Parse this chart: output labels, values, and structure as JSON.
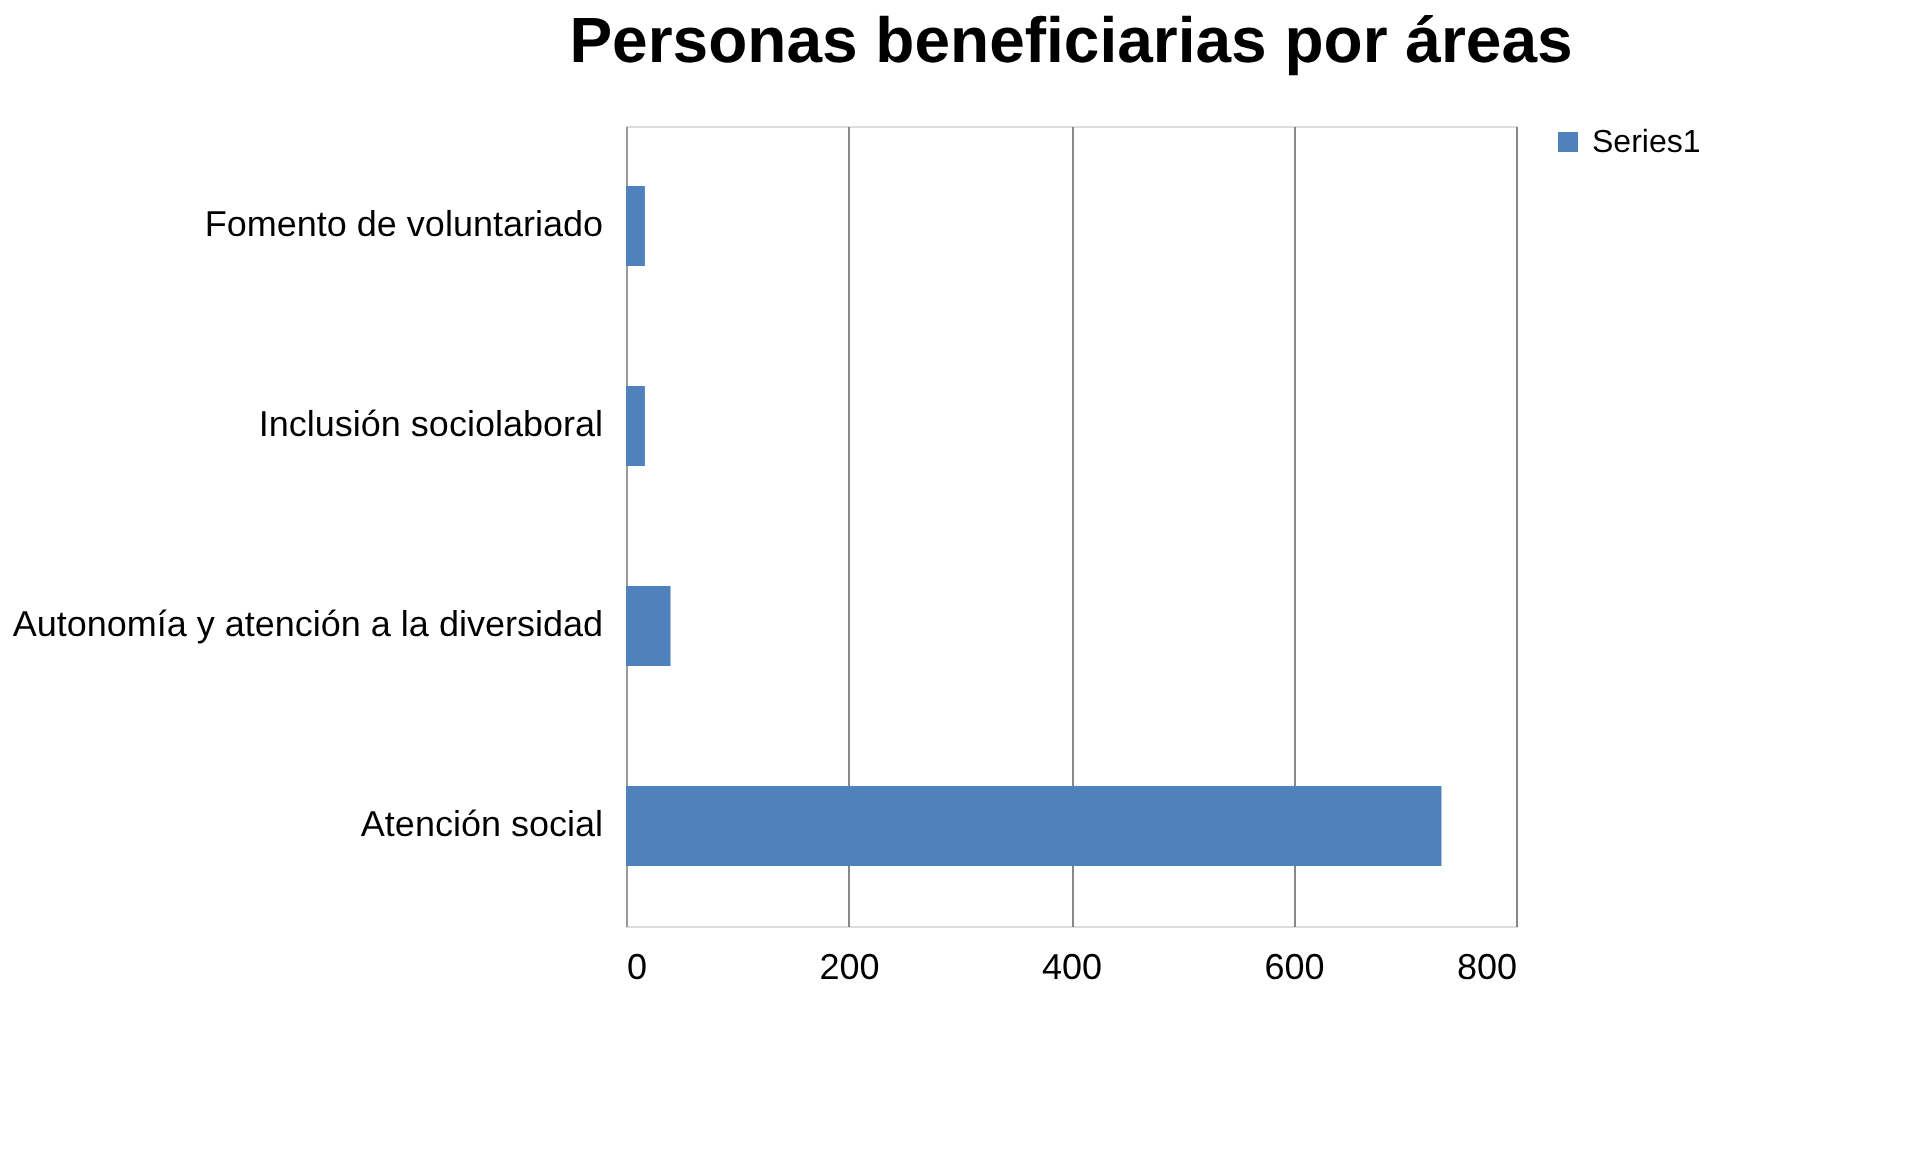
{
  "chart_data": {
    "type": "bar",
    "orientation": "horizontal",
    "title": "Personas beneficiarias por áreas",
    "categories": [
      "Fomento de voluntariado",
      "Inclusión sociolaboral",
      "Autonomía y atención a la diversidad",
      "Atención social"
    ],
    "series": [
      {
        "name": "Series1",
        "color": "#4f81bd",
        "values": [
          17,
          17,
          40,
          733
        ]
      }
    ],
    "xlim": [
      0,
      800
    ],
    "xticks": [
      0,
      200,
      400,
      600,
      800
    ],
    "grid": "x",
    "legend": "right"
  }
}
